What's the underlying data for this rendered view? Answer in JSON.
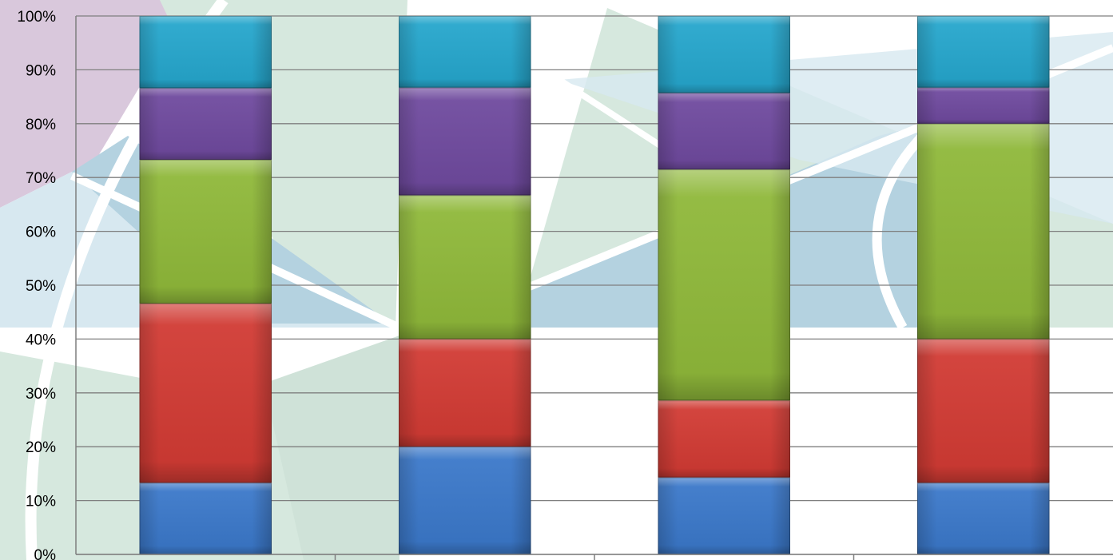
{
  "chart_data": {
    "type": "bar",
    "stacked": true,
    "normalized_percent": true,
    "categories": [
      "",
      "",
      "",
      ""
    ],
    "series": [
      {
        "values": [
          13.3,
          20.0,
          14.3,
          13.3
        ],
        "color": "#3b78c9"
      },
      {
        "values": [
          33.3,
          20.0,
          14.3,
          26.7
        ],
        "color": "#d13b34"
      },
      {
        "values": [
          26.7,
          26.7,
          42.9,
          40.0
        ],
        "color": "#8fb83a"
      },
      {
        "values": [
          13.3,
          20.0,
          14.2,
          6.7
        ],
        "color": "#6f4a9e"
      },
      {
        "values": [
          13.4,
          13.3,
          14.3,
          13.3
        ],
        "color": "#26a6cc"
      }
    ],
    "ylim": [
      0,
      100
    ],
    "yticks": [
      "0%",
      "10%",
      "20%",
      "30%",
      "40%",
      "50%",
      "60%",
      "70%",
      "80%",
      "90%",
      "100%"
    ],
    "grid": true,
    "legend": "none"
  },
  "colors": {
    "gridline": "#7f7f7f",
    "axis": "#7f7f7f",
    "bg_purple": "#d9c8dc",
    "bg_green": "#d6e8de",
    "bg_blue_light": "#d7e8f0",
    "bg_blue": "#b4d2e0"
  }
}
